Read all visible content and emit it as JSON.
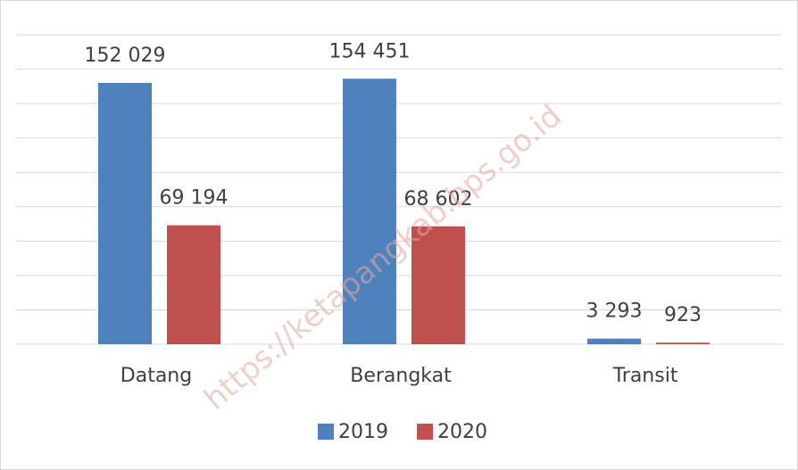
{
  "chart_data": {
    "type": "bar",
    "categories": [
      "Datang",
      "Berangkat",
      "Transit"
    ],
    "series": [
      {
        "name": "2019",
        "color": "#4f81bd",
        "values": [
          152029,
          154451,
          3293
        ],
        "value_labels": [
          "152 029",
          "154 451",
          "3 293"
        ]
      },
      {
        "name": "2020",
        "color": "#c0504d",
        "values": [
          69194,
          68602,
          923
        ],
        "value_labels": [
          "69 194",
          "68 602",
          "923"
        ]
      }
    ],
    "ylim": [
      0,
      180000
    ],
    "yticks": [
      0,
      20000,
      40000,
      60000,
      80000,
      100000,
      120000,
      140000,
      160000,
      180000
    ],
    "grid": true,
    "legend": "bottom",
    "watermark": "https://ketapangkab.bps.go.id"
  }
}
